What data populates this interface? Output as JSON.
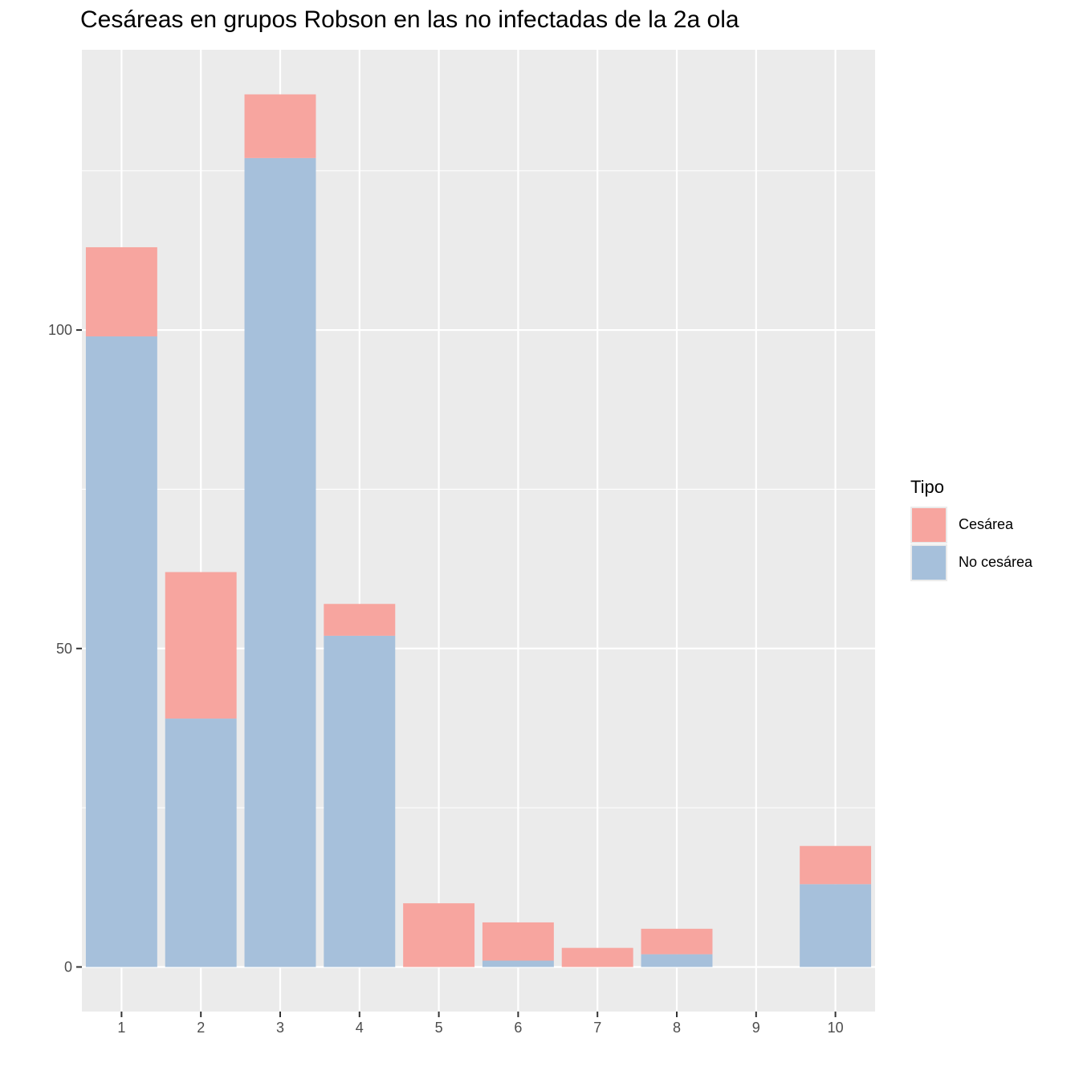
{
  "chart_data": {
    "type": "bar",
    "stacked": true,
    "title": "Cesáreas en grupos Robson en las no infectadas de la 2a ola",
    "xlabel": "",
    "ylabel": "",
    "categories": [
      "1",
      "2",
      "3",
      "4",
      "5",
      "6",
      "7",
      "8",
      "9",
      "10"
    ],
    "series": [
      {
        "name": "No cesárea",
        "color": "#a6c0db",
        "values": [
          99,
          39,
          127,
          52,
          0,
          1,
          0,
          2,
          0,
          13
        ]
      },
      {
        "name": "Cesárea",
        "color": "#f7a59f",
        "values": [
          14,
          23,
          10,
          5,
          10,
          6,
          3,
          4,
          0,
          6
        ]
      }
    ],
    "ylim": [
      -7,
      144
    ],
    "yticks": [
      0,
      50,
      100
    ],
    "grid": true,
    "legend": {
      "title": "Tipo",
      "position": "right",
      "entries": [
        "Cesárea",
        "No cesárea"
      ]
    }
  },
  "legend_colors": {
    "Cesárea": "#f7a59f",
    "No cesárea": "#a6c0db"
  }
}
